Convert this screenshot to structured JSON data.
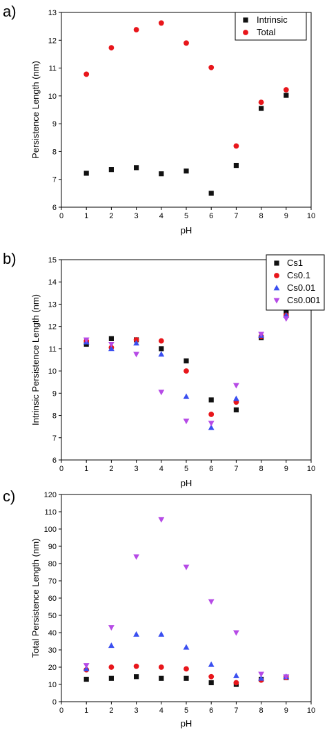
{
  "colors": {
    "black": "#111111",
    "red": "#e8161b",
    "blue": "#3a4ff0",
    "magenta": "#b64ae6"
  },
  "chart_data": [
    {
      "panel": "a)",
      "type": "scatter",
      "xlabel": "pH",
      "ylabel": "Persistence Length (nm)",
      "xlim": [
        0,
        10
      ],
      "ylim": [
        6,
        13
      ],
      "xticks": [
        0,
        1,
        2,
        3,
        4,
        5,
        6,
        7,
        8,
        9,
        10
      ],
      "yticks": [
        6,
        7,
        8,
        9,
        10,
        11,
        12,
        13
      ],
      "grid": false,
      "legend_position": "top-right",
      "series": [
        {
          "name": "Intrinsic",
          "marker": "square",
          "color": "#111111",
          "x": [
            1,
            2,
            3,
            4,
            5,
            6,
            7,
            8,
            9
          ],
          "y": [
            7.22,
            7.35,
            7.42,
            7.2,
            7.3,
            6.5,
            7.5,
            9.55,
            10.02
          ]
        },
        {
          "name": "Total",
          "marker": "circle",
          "color": "#e8161b",
          "x": [
            1,
            2,
            3,
            4,
            5,
            6,
            7,
            8,
            9
          ],
          "y": [
            10.78,
            11.73,
            12.38,
            12.62,
            11.9,
            11.02,
            8.2,
            9.77,
            10.22
          ]
        }
      ]
    },
    {
      "panel": "b)",
      "type": "scatter",
      "xlabel": "pH",
      "ylabel": "Intrinsic Persistence Length (nm)",
      "xlim": [
        0,
        10
      ],
      "ylim": [
        6,
        15
      ],
      "xticks": [
        0,
        1,
        2,
        3,
        4,
        5,
        6,
        7,
        8,
        9,
        10
      ],
      "yticks": [
        6,
        7,
        8,
        9,
        10,
        11,
        12,
        13,
        14,
        15
      ],
      "grid": false,
      "legend_position": "top-right",
      "series": [
        {
          "name": "Cs1",
          "marker": "square",
          "color": "#111111",
          "x": [
            1,
            2,
            3,
            4,
            5,
            6,
            7,
            8,
            9
          ],
          "y": [
            11.2,
            11.45,
            11.4,
            11.0,
            10.45,
            8.7,
            8.25,
            11.5,
            12.65
          ]
        },
        {
          "name": "Cs0.1",
          "marker": "circle",
          "color": "#e8161b",
          "x": [
            1,
            2,
            3,
            4,
            5,
            6,
            7,
            8,
            9
          ],
          "y": [
            11.35,
            11.05,
            11.4,
            11.35,
            10.0,
            8.05,
            8.6,
            11.55,
            12.5
          ]
        },
        {
          "name": "Cs0.01",
          "marker": "triangle-up",
          "color": "#3a4ff0",
          "x": [
            1,
            2,
            3,
            4,
            5,
            6,
            7,
            8,
            9
          ],
          "y": [
            11.3,
            11.0,
            11.25,
            10.75,
            8.85,
            7.45,
            8.75,
            11.6,
            12.5
          ]
        },
        {
          "name": "Cs0.001",
          "marker": "triangle-down",
          "color": "#b64ae6",
          "x": [
            1,
            2,
            3,
            4,
            5,
            6,
            7,
            8,
            9
          ],
          "y": [
            11.4,
            11.2,
            10.75,
            9.05,
            7.75,
            7.65,
            9.35,
            11.65,
            12.35
          ]
        }
      ]
    },
    {
      "panel": "c)",
      "type": "scatter",
      "xlabel": "pH",
      "ylabel": "Total Persistence Length (nm)",
      "xlim": [
        0,
        10
      ],
      "ylim": [
        0,
        120
      ],
      "xticks": [
        0,
        1,
        2,
        3,
        4,
        5,
        6,
        7,
        8,
        9,
        10
      ],
      "yticks": [
        0,
        10,
        20,
        30,
        40,
        50,
        60,
        70,
        80,
        90,
        100,
        110,
        120
      ],
      "grid": false,
      "series": [
        {
          "name": "Cs1",
          "marker": "square",
          "color": "#111111",
          "x": [
            1,
            2,
            3,
            4,
            5,
            6,
            7,
            8,
            9
          ],
          "y": [
            13,
            13.5,
            14.5,
            13.5,
            13.5,
            11,
            10,
            13,
            14
          ]
        },
        {
          "name": "Cs0.1",
          "marker": "circle",
          "color": "#e8161b",
          "x": [
            1,
            2,
            3,
            4,
            5,
            6,
            7,
            8,
            9
          ],
          "y": [
            18.5,
            20,
            20.5,
            20,
            19,
            14.5,
            11,
            12.5,
            14
          ]
        },
        {
          "name": "Cs0.01",
          "marker": "triangle-up",
          "color": "#3a4ff0",
          "x": [
            1,
            2,
            3,
            4,
            5,
            6,
            7,
            8,
            9
          ],
          "y": [
            19,
            32.5,
            39,
            39,
            31.5,
            21.5,
            15,
            13.5,
            14.5
          ]
        },
        {
          "name": "Cs0.001",
          "marker": "triangle-down",
          "color": "#b64ae6",
          "x": [
            1,
            2,
            3,
            4,
            5,
            6,
            7,
            8,
            9
          ],
          "y": [
            21,
            43,
            84,
            105.5,
            78,
            58,
            40,
            16,
            14.5
          ]
        }
      ]
    }
  ]
}
